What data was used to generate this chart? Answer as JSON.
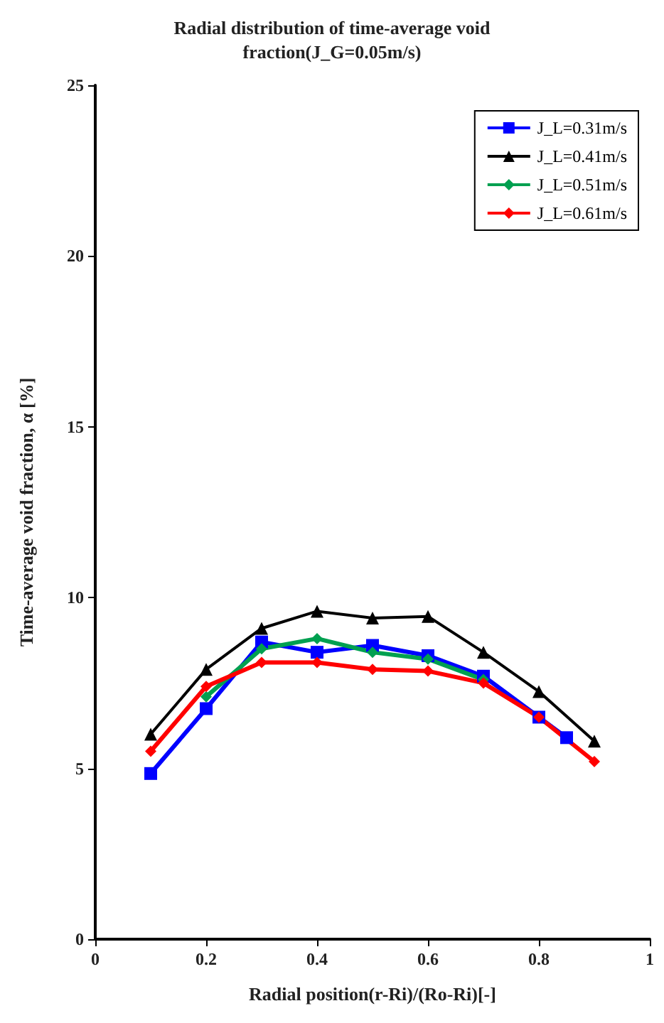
{
  "chart_data": {
    "type": "line",
    "title": "Radial distribution of time-average void\nfraction(J_G=0.05m/s)",
    "xlabel": "Radial position(r-Ri)/(Ro-Ri)[-]",
    "ylabel": "Time-average void fraction, α [%]",
    "xlim": [
      0,
      1
    ],
    "xticks": [
      0,
      0.2,
      0.4,
      0.6,
      0.8,
      1
    ],
    "ylim": [
      0,
      25
    ],
    "yticks": [
      0,
      5,
      10,
      15,
      20,
      25
    ],
    "grid": false,
    "legend": "top right",
    "series": [
      {
        "name": "J_L=0.31m/s",
        "color": "#0000ff",
        "marker": "square",
        "x": [
          0.1,
          0.2,
          0.3,
          0.4,
          0.5,
          0.6,
          0.7,
          0.8,
          0.85
        ],
        "values": [
          4.85,
          6.75,
          8.7,
          8.4,
          8.6,
          8.3,
          7.7,
          6.5,
          5.9
        ]
      },
      {
        "name": "J_L=0.41m/s",
        "color": "#000000",
        "marker": "triangle",
        "x": [
          0.1,
          0.2,
          0.3,
          0.4,
          0.5,
          0.6,
          0.7,
          0.8,
          0.9
        ],
        "values": [
          6.0,
          7.9,
          9.1,
          9.6,
          9.4,
          9.45,
          8.4,
          7.25,
          5.8
        ]
      },
      {
        "name": "J_L=0.51m/s",
        "color": "#00a050",
        "marker": "diamond",
        "x": [
          0.2,
          0.3,
          0.4,
          0.5,
          0.6,
          0.7
        ],
        "values": [
          7.1,
          8.5,
          8.8,
          8.4,
          8.2,
          7.6
        ]
      },
      {
        "name": "J_L=0.61m/s",
        "color": "#ff0000",
        "marker": "diamond",
        "x": [
          0.1,
          0.2,
          0.3,
          0.4,
          0.5,
          0.6,
          0.7,
          0.8,
          0.9
        ],
        "values": [
          5.5,
          7.4,
          8.1,
          8.1,
          7.9,
          7.85,
          7.5,
          6.5,
          5.2
        ]
      }
    ]
  }
}
